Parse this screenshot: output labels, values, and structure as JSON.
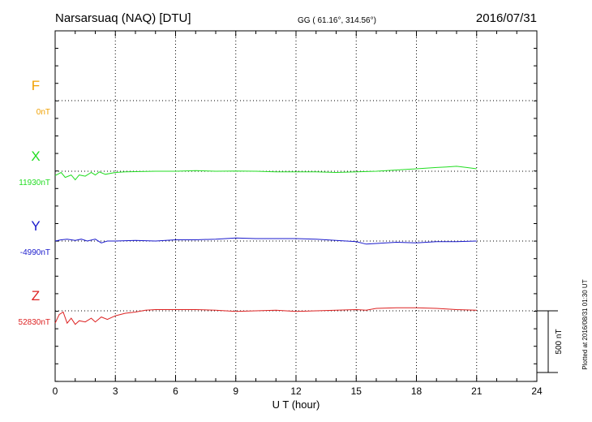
{
  "header": {
    "station": "Narsarsuaq (NAQ)  [DTU]",
    "coords": "GG ( 61.16°, 314.56°)",
    "date": "2016/07/31"
  },
  "footer": {
    "plotted": "Plotted at 2016/08/31 01:30 UT"
  },
  "chart_data": {
    "type": "line",
    "xlabel": "U T (hour)",
    "xlim": [
      0,
      24
    ],
    "xticks": [
      "0",
      "3",
      "6",
      "9",
      "12",
      "15",
      "18",
      "21",
      "24"
    ],
    "scale_bar_label": "500 nT",
    "scale_nT": 500,
    "series": [
      {
        "name": "F",
        "baseline_label": "0nT",
        "color": "#f0a000",
        "x": [],
        "values": []
      },
      {
        "name": "X",
        "baseline_label": "11930nT",
        "color": "#22dd22",
        "x": [
          0,
          0.3,
          0.5,
          0.8,
          1.0,
          1.2,
          1.5,
          1.8,
          2.0,
          2.2,
          2.5,
          3.0,
          3.5,
          4.0,
          5.0,
          6.0,
          7.0,
          8.0,
          9.0,
          10.0,
          11.0,
          12.0,
          13.0,
          14.0,
          15.0,
          16.0,
          17.0,
          18.0,
          19.0,
          19.5,
          20.0,
          20.5,
          21.0
        ],
        "values": [
          -35,
          -10,
          -50,
          -30,
          -70,
          -30,
          -40,
          -10,
          -30,
          -5,
          -25,
          -10,
          -5,
          -3,
          0,
          0,
          5,
          0,
          2,
          0,
          -5,
          -5,
          -5,
          -10,
          -5,
          0,
          10,
          20,
          30,
          35,
          40,
          30,
          20
        ]
      },
      {
        "name": "Y",
        "baseline_label": "-4990nT",
        "color": "#1a1acc",
        "x": [
          0,
          0.3,
          0.6,
          1.0,
          1.3,
          1.6,
          2.0,
          2.3,
          2.6,
          3.0,
          4.0,
          5.0,
          6.0,
          7.0,
          8.0,
          9.0,
          10.0,
          11.0,
          12.0,
          13.0,
          14.0,
          14.5,
          15.0,
          15.5,
          16.0,
          17.0,
          18.0,
          19.0,
          20.0,
          21.0
        ],
        "values": [
          0,
          10,
          15,
          5,
          15,
          0,
          15,
          -15,
          0,
          0,
          5,
          0,
          10,
          10,
          15,
          25,
          20,
          20,
          20,
          15,
          5,
          0,
          -5,
          -25,
          -20,
          -10,
          -15,
          -5,
          -5,
          0
        ]
      },
      {
        "name": "Z",
        "baseline_label": "52830nT",
        "color": "#dd2222",
        "x": [
          0,
          0.2,
          0.4,
          0.6,
          0.8,
          1.0,
          1.2,
          1.5,
          1.8,
          2.0,
          2.3,
          2.6,
          3.0,
          3.5,
          4.0,
          4.5,
          5.0,
          6.0,
          7.0,
          8.0,
          9.0,
          10.0,
          11.0,
          12.0,
          13.0,
          14.0,
          15.0,
          15.5,
          16.0,
          17.0,
          18.0,
          19.0,
          20.0,
          21.0
        ],
        "values": [
          -100,
          -30,
          -10,
          -100,
          -60,
          -110,
          -80,
          -90,
          -60,
          -90,
          -50,
          -70,
          -40,
          -20,
          -10,
          5,
          10,
          10,
          10,
          5,
          -5,
          0,
          5,
          -5,
          0,
          5,
          10,
          5,
          20,
          25,
          25,
          20,
          10,
          5
        ]
      }
    ]
  }
}
